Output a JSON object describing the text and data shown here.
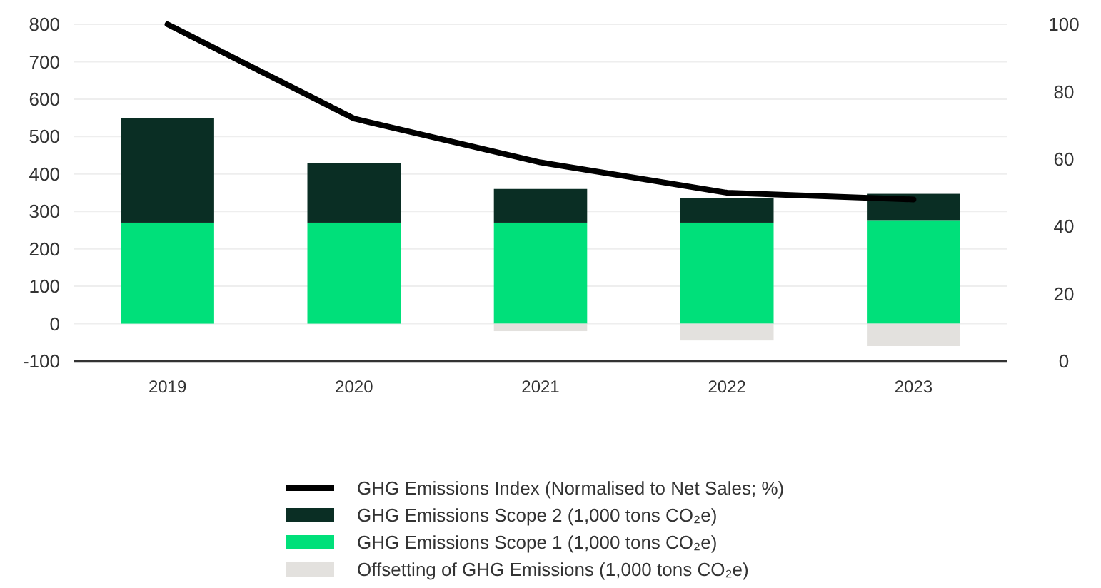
{
  "chart_data": {
    "type": "bar",
    "stacked": true,
    "categories": [
      "2019",
      "2020",
      "2021",
      "2022",
      "2023"
    ],
    "series": [
      {
        "name": "GHG Emissions Index (Normalised to Net Sales; %)",
        "type": "line",
        "axis": "y2",
        "color": "#000000",
        "values": [
          100,
          72,
          59,
          50,
          48
        ]
      },
      {
        "name": "GHG Emissions Scope 1 (1,000 tons CO₂e)",
        "color": "#00e07a",
        "values": [
          270,
          270,
          270,
          270,
          275
        ]
      },
      {
        "name": "GHG Emissions Scope 2 (1,000 tons CO₂e)",
        "color": "#0a2e24",
        "values": [
          280,
          160,
          90,
          65,
          72
        ]
      },
      {
        "name": "Offsetting of GHG Emissions (1,000 tons CO₂e)",
        "color": "#e3e1de",
        "values": [
          0,
          0,
          -20,
          -45,
          -60
        ]
      }
    ],
    "ylim": [
      -100,
      800
    ],
    "yticks": [
      -100,
      0,
      100,
      200,
      300,
      400,
      500,
      600,
      700,
      800
    ],
    "y2lim": [
      0,
      100
    ],
    "y2ticks": [
      0,
      20,
      40,
      60,
      80,
      100
    ],
    "grid": "y",
    "legend": "bottom",
    "marker": "none",
    "line_style": "solid"
  }
}
